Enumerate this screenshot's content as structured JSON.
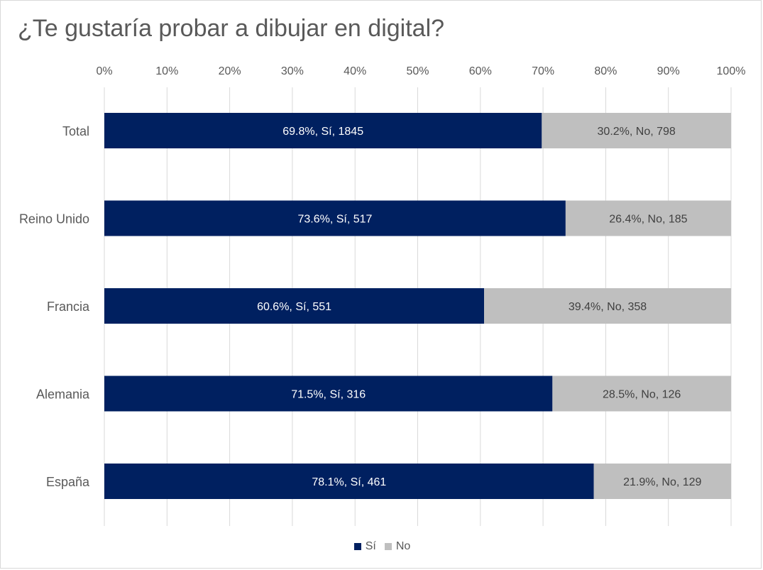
{
  "chart_data": {
    "type": "bar",
    "orientation": "horizontal",
    "stacked": "percent",
    "title": "¿Te gustaría probar a dibujar en digital?",
    "categories": [
      "Total",
      "Reino Unido",
      "Francia",
      "Alemania",
      "España"
    ],
    "series": [
      {
        "name": "Sí",
        "color": "#002060",
        "percent": [
          69.8,
          73.6,
          60.6,
          71.5,
          78.1
        ],
        "counts": [
          1845,
          517,
          551,
          316,
          461
        ],
        "labels": [
          "69.8%, Sí, 1845",
          "73.6%, Sí, 517",
          "60.6%, Sí, 551",
          "71.5%, Sí, 316",
          "78.1%, Sí, 461"
        ]
      },
      {
        "name": "No",
        "color": "#bfbfbf",
        "percent": [
          30.2,
          26.4,
          39.4,
          28.5,
          21.9
        ],
        "counts": [
          798,
          185,
          358,
          126,
          129
        ],
        "labels": [
          "30.2%, No, 798",
          "26.4%, No, 185",
          "39.4%, No, 358",
          "28.5%, No, 126",
          "21.9%, No, 129"
        ]
      }
    ],
    "x_ticks": [
      "0%",
      "10%",
      "20%",
      "30%",
      "40%",
      "50%",
      "60%",
      "70%",
      "80%",
      "90%",
      "100%"
    ],
    "xlim": [
      0,
      100
    ],
    "x_axis_position": "top",
    "grid": true,
    "legend": "bottom"
  }
}
